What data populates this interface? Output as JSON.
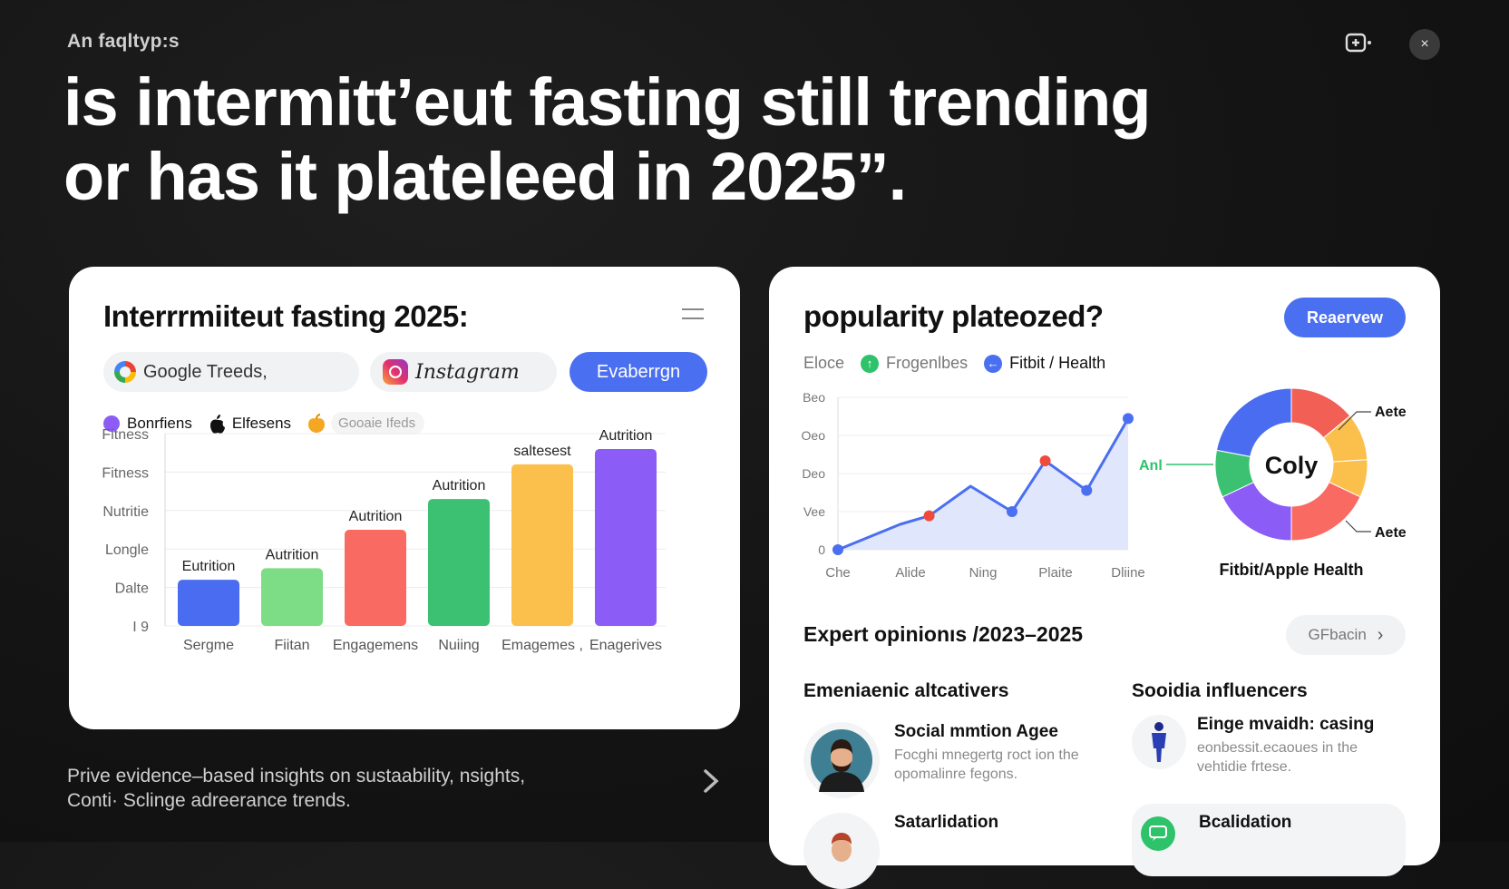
{
  "header": {
    "eyebrow": "An faqltyp:s",
    "headline_line1": "is intermitt’eut fasting still trending",
    "headline_line2": "or has it plateleed in 2025”."
  },
  "top_icons": {
    "share_icon": "share-screen-icon",
    "close_label": "×"
  },
  "left_card": {
    "title": "Interrrmiiteut fasting 2025:",
    "sources": [
      {
        "icon": "google-icon",
        "label": "Google Treeds,"
      },
      {
        "icon": "instagram-icon",
        "label": "Instagram"
      }
    ],
    "action_button": "Evaberrgn",
    "legend": [
      {
        "label": "Bonrfiens",
        "color": "#8b5cf6",
        "icon": "purple-dot"
      },
      {
        "label": "Elfesens",
        "color": "#111111",
        "icon": "apple-icon"
      },
      {
        "label": "Gooaie Ifeds",
        "color": "#f5a623",
        "icon": "fruit-icon"
      }
    ],
    "chart_data": {
      "type": "bar",
      "y_tick_labels": [
        "Fitness",
        "Fitness",
        "Nutritie",
        "Longle",
        "Dalte",
        "I 9"
      ],
      "categories": [
        "Sergme",
        "Fiitan",
        "Engagemens",
        "Nuiing",
        "Emagemes ,",
        "Enagerives"
      ],
      "values": [
        12,
        15,
        25,
        33,
        42,
        46
      ],
      "ylim": [
        0,
        50
      ],
      "data_labels": [
        "Eutrition",
        "Autrition",
        "Autrition",
        "Autrition",
        "saltesest",
        "Autrition"
      ],
      "colors": [
        "#4a6cf0",
        "#7ddc86",
        "#f86a62",
        "#3cc173",
        "#fbbf4c",
        "#8b5cf6"
      ],
      "grid": true
    }
  },
  "right_card": {
    "title": "popularity plateozed?",
    "action_button": "Reaervew",
    "legend": [
      {
        "label": "Eloce",
        "color": "",
        "strong": false
      },
      {
        "label": "Frogenlbes",
        "color": "#2ec36b",
        "strong": false
      },
      {
        "label": "Fitbit / Health",
        "color": "#4a6ff0",
        "strong": true
      }
    ],
    "line_chart": {
      "type": "line",
      "y_tick_labels": [
        "Beo",
        "Oeo",
        "Deo",
        "Vee",
        "0"
      ],
      "x_tick_labels": [
        "Che",
        "Alide",
        "Ning",
        "Plaite",
        "Dliine"
      ],
      "x": [
        0,
        1.5,
        2.2,
        3.2,
        4.2,
        5.0,
        6.0,
        7.0
      ],
      "y": [
        0,
        30,
        40,
        75,
        45,
        105,
        70,
        155
      ],
      "highlight_points": [
        2,
        5
      ],
      "ylim": [
        0,
        180
      ],
      "line_color": "#4a6ff0",
      "fill_color": "#dde3fb",
      "highlight_color": "#f04a3a"
    },
    "donut": {
      "type": "pie",
      "center_label": "Coly",
      "caption": "Fitbit/Apple Health",
      "left_label": "Anl",
      "right_labels": [
        "Aete",
        "Aete"
      ],
      "slices": [
        {
          "value": 14,
          "color": "#f25f55"
        },
        {
          "value": 10,
          "color": "#fbbf4c"
        },
        {
          "value": 8,
          "color": "#fbbf4c"
        },
        {
          "value": 18,
          "color": "#f86a62"
        },
        {
          "value": 18,
          "color": "#8b5cf6"
        },
        {
          "value": 10,
          "color": "#3cc173"
        },
        {
          "value": 22,
          "color": "#4a6cf0"
        }
      ]
    },
    "experts": {
      "title": "Expert opinionıs /2023–2025",
      "button_label": "GFbacin",
      "button_chevron": "›",
      "left_heading": "Emeniaenic altcativers",
      "right_heading": "Sooidia influencers",
      "left_items": [
        {
          "title": "Social mmtion Agee",
          "subtitle": "Focghi mnegertg roct ion the opomalinre fegons."
        },
        {
          "title": "Satarlidation",
          "subtitle": ""
        }
      ],
      "right_items": [
        {
          "title": "Einge mvaidh: casing",
          "subtitle": "eonbessit.ecaoues in the vehtidie frtese."
        },
        {
          "title": "Bcalidation",
          "subtitle": ""
        }
      ]
    }
  },
  "footer": {
    "line1": "Prive evidence–based insights on sustaability,  nsights,",
    "line2": "Conti· Sclinge adreerance trends."
  }
}
